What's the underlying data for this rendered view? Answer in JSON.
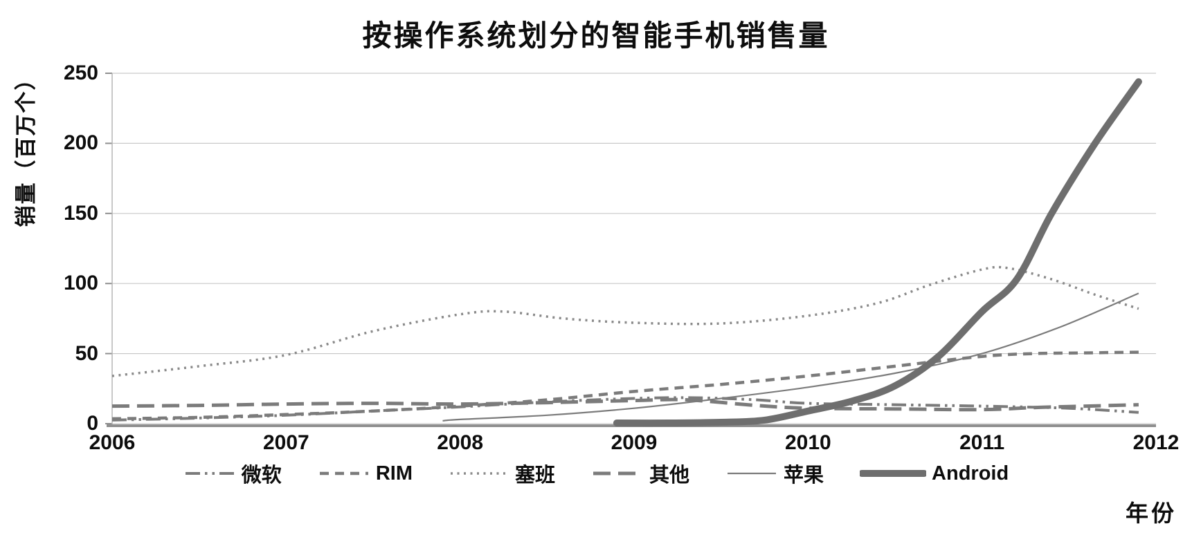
{
  "chart_data": {
    "type": "line",
    "title": "按操作系统划分的智能手机销售量",
    "xlabel": "年份",
    "ylabel": "销量（百万个）",
    "xlim": [
      2006,
      2012
    ],
    "ylim": [
      0,
      250
    ],
    "yticks": [
      0,
      50,
      100,
      150,
      200,
      250
    ],
    "xticks": [
      2006,
      2007,
      2008,
      2009,
      2010,
      2011,
      2012
    ],
    "grid": "horizontal",
    "legend_position": "bottom",
    "grid_color": "#c9c9c9",
    "axis_color": "#8f8f8f",
    "text_color": "#0d0d0d",
    "series": [
      {
        "name": "微软",
        "style": "dash-dot-dot",
        "color": "#7b7b7b",
        "width": 4,
        "points": [
          [
            2006,
            2.5
          ],
          [
            2006.5,
            4
          ],
          [
            2007,
            6
          ],
          [
            2007.5,
            9
          ],
          [
            2008,
            12
          ],
          [
            2008.5,
            15.5
          ],
          [
            2009,
            18
          ],
          [
            2009.35,
            18.5
          ],
          [
            2009.7,
            17
          ],
          [
            2010,
            14.5
          ],
          [
            2010.5,
            13.5
          ],
          [
            2011,
            12.5
          ],
          [
            2011.5,
            11
          ],
          [
            2011.9,
            8
          ]
        ]
      },
      {
        "name": "RIM",
        "style": "dash",
        "color": "#7b7b7b",
        "width": 4.5,
        "points": [
          [
            2006,
            3.5
          ],
          [
            2006.5,
            4.5
          ],
          [
            2007,
            6.5
          ],
          [
            2007.5,
            9
          ],
          [
            2008,
            12.5
          ],
          [
            2008.5,
            17
          ],
          [
            2009,
            23
          ],
          [
            2009.5,
            28
          ],
          [
            2010,
            34
          ],
          [
            2010.5,
            41
          ],
          [
            2011,
            48
          ],
          [
            2011.3,
            50
          ],
          [
            2011.6,
            50.5
          ],
          [
            2011.9,
            51
          ]
        ]
      },
      {
        "name": "塞班",
        "style": "dot",
        "color": "#8a8a8a",
        "width": 3.5,
        "points": [
          [
            2006,
            34
          ],
          [
            2006.5,
            41
          ],
          [
            2007,
            49
          ],
          [
            2007.5,
            66
          ],
          [
            2008,
            78
          ],
          [
            2008.25,
            80
          ],
          [
            2008.6,
            75
          ],
          [
            2009,
            72
          ],
          [
            2009.5,
            71.5
          ],
          [
            2010,
            77
          ],
          [
            2010.4,
            86
          ],
          [
            2010.7,
            99
          ],
          [
            2011,
            110
          ],
          [
            2011.15,
            111
          ],
          [
            2011.4,
            103
          ],
          [
            2011.65,
            92
          ],
          [
            2011.9,
            82
          ]
        ]
      },
      {
        "name": "其他",
        "style": "long-dash",
        "color": "#7b7b7b",
        "width": 5,
        "points": [
          [
            2006,
            12.5
          ],
          [
            2006.5,
            13
          ],
          [
            2007,
            14
          ],
          [
            2007.5,
            14.5
          ],
          [
            2008,
            14
          ],
          [
            2008.5,
            15
          ],
          [
            2009,
            16.5
          ],
          [
            2009.3,
            17
          ],
          [
            2009.7,
            13
          ],
          [
            2010,
            11
          ],
          [
            2010.5,
            10.5
          ],
          [
            2011,
            10
          ],
          [
            2011.3,
            11.5
          ],
          [
            2011.6,
            12.5
          ],
          [
            2011.9,
            13.5
          ]
        ]
      },
      {
        "name": "苹果",
        "style": "solid",
        "color": "#7b7b7b",
        "width": 2.2,
        "points": [
          [
            2007.9,
            2
          ],
          [
            2008,
            3
          ],
          [
            2008.5,
            6
          ],
          [
            2009,
            11
          ],
          [
            2009.5,
            18
          ],
          [
            2010,
            26
          ],
          [
            2010.5,
            36
          ],
          [
            2011,
            50
          ],
          [
            2011.45,
            69
          ],
          [
            2011.9,
            93
          ]
        ]
      },
      {
        "name": "Android",
        "style": "solid",
        "color": "#6e6e6e",
        "width": 10,
        "points": [
          [
            2008.9,
            0.5
          ],
          [
            2009.2,
            0.5
          ],
          [
            2009.5,
            1
          ],
          [
            2009.75,
            2.5
          ],
          [
            2010,
            9
          ],
          [
            2010.25,
            16
          ],
          [
            2010.5,
            27
          ],
          [
            2010.75,
            48
          ],
          [
            2011,
            80
          ],
          [
            2011.2,
            103
          ],
          [
            2011.4,
            150
          ],
          [
            2011.65,
            200
          ],
          [
            2011.9,
            244
          ]
        ]
      }
    ]
  }
}
